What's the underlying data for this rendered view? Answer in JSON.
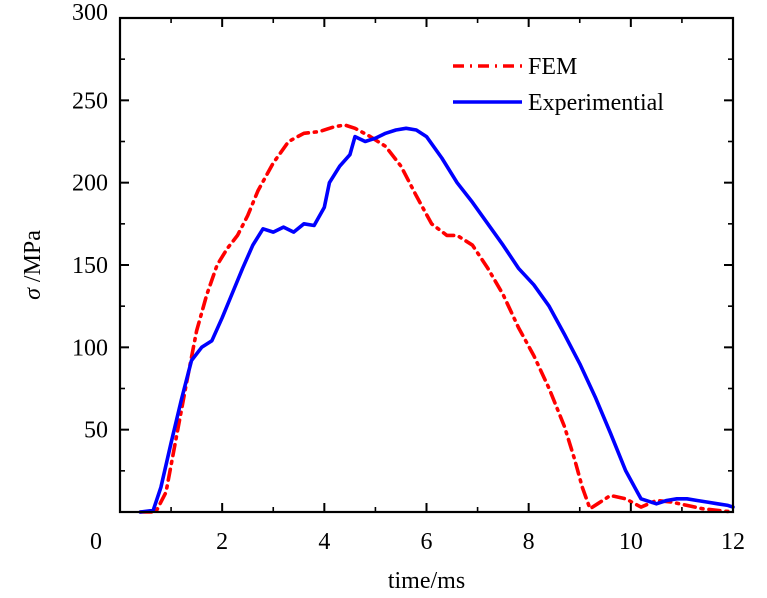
{
  "chart_data": {
    "type": "line",
    "title": "",
    "xlabel": "time/ms",
    "ylabel_symbol": "σ",
    "ylabel_unit": " /MPa",
    "xlim": [
      0,
      12
    ],
    "ylim": [
      0,
      300
    ],
    "xticks": [
      0,
      2,
      4,
      6,
      8,
      10,
      12
    ],
    "yticks": [
      50,
      100,
      150,
      200,
      250,
      300
    ],
    "x_tick_labels": [
      "0",
      "2",
      "4",
      "6",
      "8",
      "10",
      "12"
    ],
    "y_tick_labels": [
      "50",
      "100",
      "150",
      "200",
      "250",
      "300"
    ],
    "grid": false,
    "legend_position": "top-right",
    "series": [
      {
        "name": "FEM",
        "color": "#ff0000",
        "style": "dash-dot",
        "x": [
          0.4,
          0.7,
          0.9,
          1.1,
          1.3,
          1.5,
          1.7,
          1.9,
          2.1,
          2.3,
          2.5,
          2.7,
          3.0,
          3.3,
          3.6,
          3.9,
          4.2,
          4.4,
          4.6,
          4.9,
          5.2,
          5.5,
          5.8,
          6.1,
          6.4,
          6.6,
          6.9,
          7.2,
          7.5,
          7.8,
          8.1,
          8.4,
          8.7,
          8.9,
          9.05,
          9.2,
          9.35,
          9.6,
          9.9,
          10.2,
          10.5,
          10.8,
          11.1,
          11.4,
          11.7,
          12.0
        ],
        "y": [
          0,
          0,
          12,
          45,
          78,
          110,
          132,
          150,
          160,
          168,
          180,
          195,
          212,
          225,
          230,
          231,
          234,
          235,
          233,
          228,
          222,
          210,
          192,
          175,
          168,
          168,
          162,
          148,
          132,
          112,
          95,
          75,
          52,
          32,
          15,
          2,
          5,
          10,
          8,
          3,
          7,
          6,
          4,
          2,
          1,
          0
        ]
      },
      {
        "name": "Experimential",
        "color": "#0000ff",
        "style": "solid",
        "x": [
          0.4,
          0.65,
          0.8,
          1.0,
          1.2,
          1.4,
          1.6,
          1.8,
          2.0,
          2.2,
          2.4,
          2.6,
          2.8,
          3.0,
          3.2,
          3.4,
          3.6,
          3.8,
          4.0,
          4.1,
          4.3,
          4.5,
          4.6,
          4.8,
          5.0,
          5.2,
          5.4,
          5.6,
          5.8,
          6.0,
          6.3,
          6.6,
          6.9,
          7.2,
          7.5,
          7.8,
          8.1,
          8.4,
          8.7,
          9.0,
          9.3,
          9.6,
          9.9,
          10.2,
          10.5,
          10.7,
          10.9,
          11.1,
          11.3,
          11.5,
          11.7,
          11.9,
          12.0
        ],
        "y": [
          0,
          1,
          15,
          42,
          68,
          92,
          100,
          104,
          118,
          133,
          148,
          162,
          172,
          170,
          173,
          170,
          175,
          174,
          185,
          200,
          210,
          217,
          228,
          225,
          227,
          230,
          232,
          233,
          232,
          228,
          215,
          200,
          188,
          175,
          162,
          148,
          138,
          125,
          108,
          90,
          70,
          48,
          25,
          8,
          5,
          7,
          8,
          8,
          7,
          6,
          5,
          4,
          3
        ]
      }
    ]
  }
}
